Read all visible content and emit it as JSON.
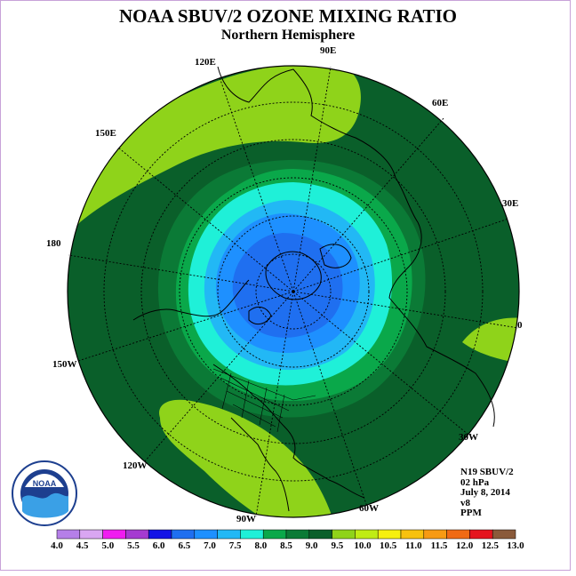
{
  "title": "NOAA SBUV/2 OZONE MIXING RATIO",
  "subtitle": "Northern Hemisphere",
  "longitude_labels": {
    "e90": "90E",
    "e60": "60E",
    "e30": "30E",
    "e120": "120E",
    "e150": "150E",
    "d180": "180",
    "d0": "0",
    "w150": "150W",
    "w120": "120W",
    "w90": "90W",
    "w60": "60W",
    "w30": "30W"
  },
  "info": {
    "instrument": "N19 SBUV/2",
    "level": "02 hPa",
    "date": "July 8, 2014",
    "version": "v8",
    "units": "PPM"
  },
  "logo": {
    "text": "NOAA",
    "ring_text": "NATIONAL OCEANIC AND ATMOSPHERIC ADMINISTRATION · U.S. DEPARTMENT OF COMMERCE"
  },
  "colorbar": {
    "ticks": [
      "4.0",
      "4.5",
      "5.0",
      "5.5",
      "6.0",
      "6.5",
      "7.0",
      "7.5",
      "8.0",
      "8.5",
      "9.0",
      "9.5",
      "10.0",
      "10.5",
      "11.0",
      "11.5",
      "12.0",
      "12.5",
      "13.0"
    ],
    "colors": [
      "#b57fe8",
      "#d9a6f2",
      "#f01df0",
      "#a53ad1",
      "#1414e6",
      "#1f6ff0",
      "#1e90ff",
      "#22b8f5",
      "#1ff0d8",
      "#0aa84a",
      "#0b7a36",
      "#0a5f2a",
      "#8fd31a",
      "#c0ec14",
      "#f6f00f",
      "#f7c10e",
      "#f79a13",
      "#f06a14",
      "#e5141e",
      "#8a5a3a"
    ]
  }
}
